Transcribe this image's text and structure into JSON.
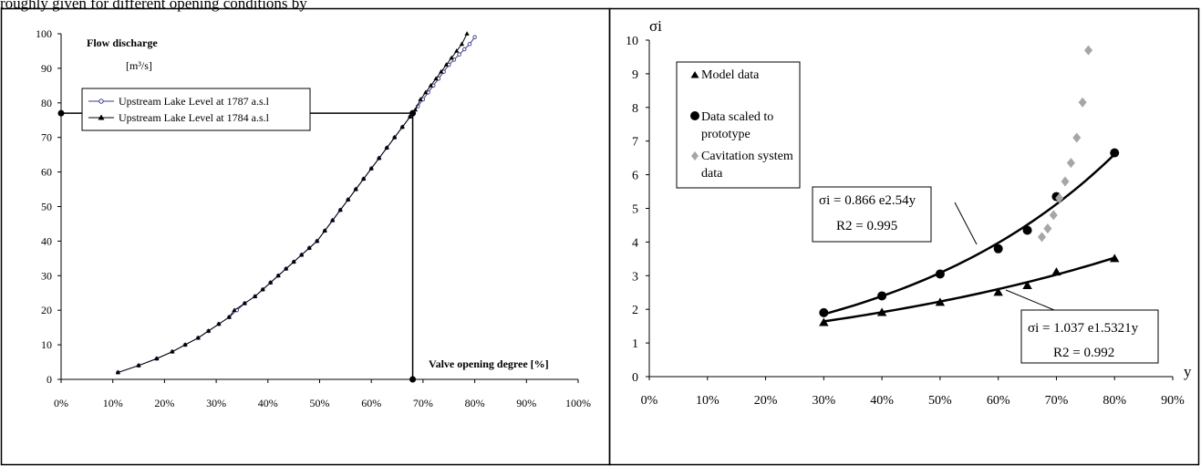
{
  "header_text": "roughly given for different opening conditions by",
  "chart_data": [
    {
      "type": "line",
      "title": "",
      "annotations": [
        "Flow discharge",
        "[m³/s]",
        "Valve opening degree [%]"
      ],
      "xlabel": "",
      "ylabel": "",
      "xlim": [
        0,
        100
      ],
      "ylim": [
        0,
        100
      ],
      "x_ticks": [
        "0%",
        "10%",
        "20%",
        "30%",
        "40%",
        "50%",
        "60%",
        "70%",
        "80%",
        "90%",
        "100%"
      ],
      "y_ticks": [
        "0",
        "10",
        "20",
        "30",
        "40",
        "50",
        "60",
        "70",
        "80",
        "90",
        "100"
      ],
      "grid": false,
      "legend_position": "top-left",
      "series": [
        {
          "name": "Upstream Lake Level at 1787 a.s.l",
          "marker": "open-circle",
          "color": "#3a3a8c",
          "x": [
            11,
            15,
            18.5,
            21.5,
            24,
            26.5,
            28.5,
            30.5,
            32.5,
            34,
            35.5,
            37.5,
            39,
            40.5,
            42,
            43.5,
            45,
            46.5,
            48,
            49.5,
            51,
            52.5,
            54,
            55.5,
            57,
            58.5,
            60,
            61.5,
            63,
            64.5,
            66,
            67.5,
            69,
            70,
            71,
            72,
            73,
            74,
            75,
            76,
            77,
            78,
            79,
            80
          ],
          "y": [
            2,
            4,
            6,
            8,
            10,
            12,
            14,
            16,
            18,
            20,
            22,
            24,
            26,
            28,
            30,
            32,
            34,
            36,
            38,
            40,
            43,
            46,
            49,
            52,
            55,
            58,
            61,
            64,
            67,
            70,
            73,
            76,
            79,
            81,
            83,
            85,
            87,
            89,
            91,
            92.5,
            94,
            95.5,
            97,
            99
          ]
        },
        {
          "name": "Upstream Lake Level at 1784 a.s.l",
          "marker": "filled-triangle",
          "color": "#000000",
          "x": [
            11,
            15,
            18.5,
            21.5,
            24,
            26.5,
            28.5,
            30.5,
            32.5,
            33.5,
            35.5,
            37.5,
            39,
            40.5,
            42,
            43.5,
            45,
            46.5,
            48,
            49.5,
            51,
            52.5,
            54,
            55.5,
            57,
            58.5,
            60,
            61.5,
            63,
            64.5,
            66,
            67.5,
            68.5,
            69.5,
            70.5,
            71.5,
            72.5,
            73.5,
            74.5,
            75.5,
            76.5,
            77.5,
            78.5
          ],
          "y": [
            2,
            4,
            6,
            8,
            10,
            12,
            14,
            16,
            18,
            20,
            22,
            24,
            26,
            28,
            30,
            32,
            34,
            36,
            38,
            40,
            43,
            46,
            49,
            52,
            55,
            58,
            61,
            64,
            67,
            70,
            73,
            76,
            78,
            81,
            83,
            85,
            87,
            89,
            91,
            93,
            95,
            97,
            100
          ]
        }
      ],
      "reference": {
        "x": 68,
        "y": 77
      }
    },
    {
      "type": "scatter",
      "title": "",
      "xlabel": "y",
      "ylabel": "σi",
      "xlim": [
        0,
        90
      ],
      "ylim": [
        0,
        10
      ],
      "x_ticks": [
        "0%",
        "10%",
        "20%",
        "30%",
        "40%",
        "50%",
        "60%",
        "70%",
        "80%",
        "90%"
      ],
      "y_ticks": [
        "0",
        "1",
        "2",
        "3",
        "4",
        "5",
        "6",
        "7",
        "8",
        "9",
        "10"
      ],
      "grid": false,
      "legend_position": "top-left",
      "series": [
        {
          "name": "Model data",
          "marker": "filled-triangle",
          "color": "#000000",
          "x": [
            30,
            40,
            50,
            60,
            65,
            70,
            80
          ],
          "y": [
            1.6,
            1.9,
            2.2,
            2.5,
            2.7,
            3.1,
            3.5
          ]
        },
        {
          "name": "Data scaled to prototype",
          "marker": "filled-circle",
          "color": "#000000",
          "x": [
            30,
            40,
            50,
            60,
            65,
            70,
            80
          ],
          "y": [
            1.9,
            2.4,
            3.05,
            3.8,
            4.35,
            5.35,
            6.65
          ]
        },
        {
          "name": "Cavitation system data",
          "marker": "diamond",
          "color": "#a6a6a6",
          "x": [
            67.5,
            68.5,
            69.5,
            70.5,
            71.5,
            72.5,
            73.5,
            74.5,
            75.5
          ],
          "y": [
            4.15,
            4.4,
            4.8,
            5.3,
            5.8,
            6.35,
            7.1,
            8.15,
            9.7
          ]
        }
      ],
      "trendlines": [
        {
          "name": "σi = 0.866 e2.54y",
          "r2": "R2 = 0.995",
          "a": 0.866,
          "b": 2.54,
          "x_range": [
            30,
            80
          ]
        },
        {
          "name": "σi = 1.037 e1.5321y",
          "r2": "R2 = 0.992",
          "a": 1.037,
          "b": 1.5321,
          "x_range": [
            30,
            80
          ]
        }
      ]
    }
  ]
}
